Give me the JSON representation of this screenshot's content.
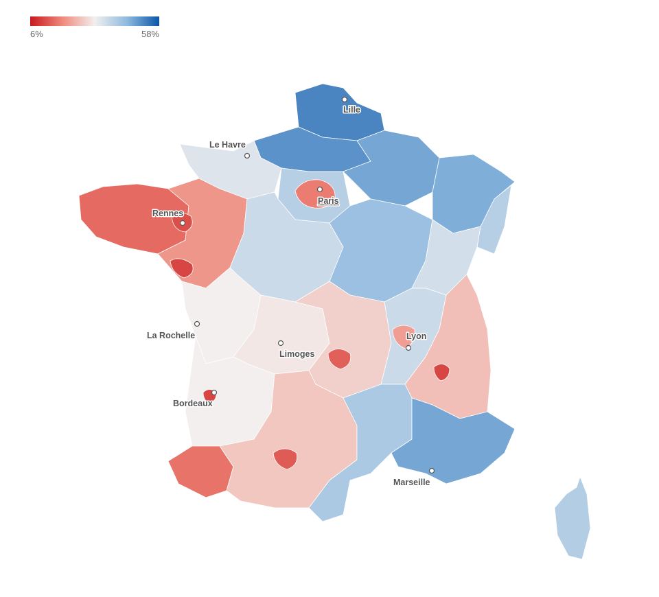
{
  "legend": {
    "min_label": "6%",
    "max_label": "58%",
    "colors": [
      "#c8181e",
      "#ef8a7c",
      "#f2efee",
      "#8fbadf",
      "#0b55a7"
    ]
  },
  "cities": [
    {
      "id": "lille",
      "name": "Lille"
    },
    {
      "id": "le-havre",
      "name": "Le Havre"
    },
    {
      "id": "paris",
      "name": "Paris"
    },
    {
      "id": "rennes",
      "name": "Rennes"
    },
    {
      "id": "la-rochelle",
      "name": "La Rochelle"
    },
    {
      "id": "lyon",
      "name": "Lyon"
    },
    {
      "id": "limoges",
      "name": "Limoges"
    },
    {
      "id": "bordeaux",
      "name": "Bordeaux"
    },
    {
      "id": "marseille",
      "name": "Marseille"
    }
  ],
  "regions": [
    {
      "id": "nord",
      "level": 0.88
    },
    {
      "id": "normandie",
      "level": 0.55
    },
    {
      "id": "picardie",
      "level": 0.85
    },
    {
      "id": "champagne",
      "level": 0.8
    },
    {
      "id": "lorraine",
      "level": 0.78
    },
    {
      "id": "alsace",
      "level": 0.65
    },
    {
      "id": "bretagne",
      "level": 0.18
    },
    {
      "id": "pays-de-loire",
      "level": 0.28
    },
    {
      "id": "centre",
      "level": 0.6
    },
    {
      "id": "idf-ring",
      "level": 0.65
    },
    {
      "id": "paris",
      "level": 0.22
    },
    {
      "id": "bourgogne",
      "level": 0.72
    },
    {
      "id": "franche-comte",
      "level": 0.58
    },
    {
      "id": "poitou",
      "level": 0.5
    },
    {
      "id": "limousin",
      "level": 0.48
    },
    {
      "id": "auvergne",
      "level": 0.42
    },
    {
      "id": "rhone",
      "level": 0.6
    },
    {
      "id": "alpes",
      "level": 0.38
    },
    {
      "id": "aquitaine",
      "level": 0.5
    },
    {
      "id": "pyrenees-atl",
      "level": 0.2
    },
    {
      "id": "midi-pyrenees",
      "level": 0.4
    },
    {
      "id": "languedoc",
      "level": 0.68
    },
    {
      "id": "paca",
      "level": 0.8
    },
    {
      "id": "corse",
      "level": 0.66
    },
    {
      "id": "toulouse",
      "level": 0.15
    },
    {
      "id": "bordeaux-city",
      "level": 0.1
    },
    {
      "id": "rennes-city",
      "level": 0.12
    },
    {
      "id": "nantes-city",
      "level": 0.1
    },
    {
      "id": "grenoble",
      "level": 0.1
    },
    {
      "id": "clermont",
      "level": 0.16
    },
    {
      "id": "lyon-city",
      "level": 0.3
    }
  ]
}
